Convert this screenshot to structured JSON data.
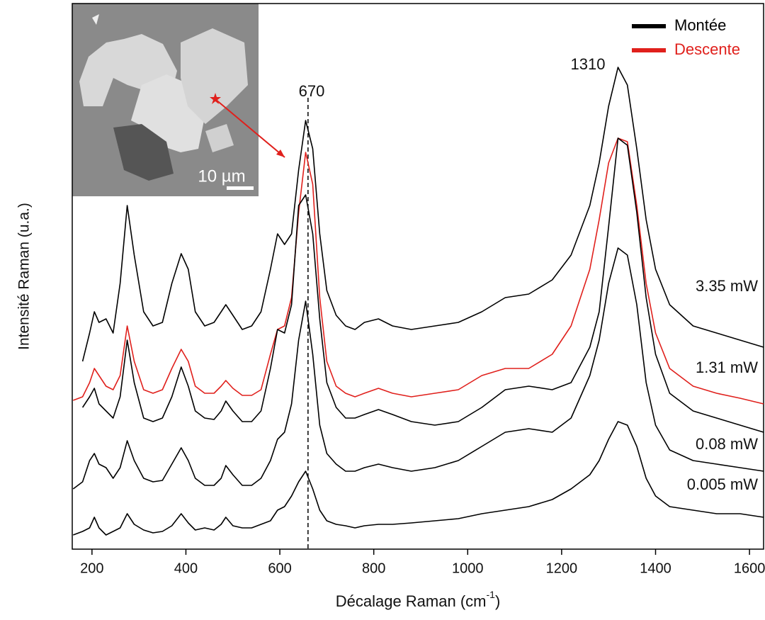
{
  "chart_data": {
    "type": "line",
    "x_label": {
      "text": "Décalage Raman (cm",
      "sup": "-1",
      "end": ")"
    },
    "y_label": "Intensité Raman (u.a.)",
    "xlim": [
      158,
      1630
    ],
    "xticks": [
      200,
      400,
      600,
      800,
      1000,
      1200,
      1400,
      1600
    ],
    "ylim": [
      0,
      770
    ],
    "reference_line": 660,
    "peak_labels": [
      "670",
      "1310"
    ],
    "inset": {
      "scale_label": "10 µm"
    },
    "x": [
      160,
      180,
      195,
      205,
      215,
      230,
      245,
      260,
      275,
      290,
      310,
      330,
      350,
      370,
      390,
      405,
      420,
      440,
      460,
      475,
      485,
      500,
      520,
      540,
      560,
      580,
      595,
      610,
      625,
      640,
      655,
      670,
      685,
      700,
      720,
      740,
      760,
      780,
      810,
      840,
      880,
      930,
      980,
      1030,
      1080,
      1130,
      1180,
      1220,
      1260,
      1280,
      1300,
      1320,
      1340,
      1360,
      1380,
      1400,
      1430,
      1480,
      1530,
      1580,
      1630
    ],
    "series": [
      {
        "name": "Montée",
        "color": "#000000",
        "label": "3.35 mW",
        "values": [
          null,
          265,
          305,
          335,
          320,
          325,
          305,
          375,
          485,
          415,
          335,
          315,
          320,
          375,
          417,
          395,
          335,
          315,
          320,
          335,
          345,
          330,
          310,
          315,
          335,
          395,
          445,
          430,
          445,
          535,
          605,
          565,
          445,
          365,
          330,
          315,
          310,
          320,
          325,
          315,
          310,
          315,
          320,
          335,
          355,
          360,
          380,
          415,
          485,
          545,
          625,
          680,
          655,
          565,
          465,
          395,
          345,
          315,
          305,
          295,
          285
        ]
      },
      {
        "name": "Descente",
        "color": "#e0201c",
        "label": "1.31 mW",
        "values": [
          210,
          215,
          235,
          255,
          245,
          230,
          225,
          245,
          315,
          265,
          225,
          220,
          225,
          255,
          282,
          265,
          230,
          220,
          220,
          230,
          238,
          227,
          217,
          217,
          225,
          275,
          310,
          315,
          355,
          475,
          560,
          515,
          355,
          265,
          230,
          220,
          215,
          220,
          227,
          220,
          215,
          220,
          225,
          245,
          255,
          255,
          275,
          315,
          395,
          465,
          545,
          580,
          575,
          485,
          375,
          305,
          255,
          230,
          220,
          213,
          205
        ]
      },
      {
        "name": "Montée",
        "color": "#000000",
        "values": [
          null,
          200,
          215,
          227,
          205,
          195,
          185,
          215,
          295,
          235,
          185,
          180,
          185,
          215,
          257,
          230,
          195,
          185,
          183,
          195,
          209,
          195,
          180,
          180,
          195,
          255,
          310,
          305,
          345,
          485,
          500,
          445,
          325,
          235,
          200,
          185,
          185,
          190,
          197,
          190,
          180,
          175,
          180,
          200,
          225,
          230,
          225,
          235,
          285,
          335,
          455,
          580,
          570,
          475,
          355,
          275,
          220,
          195,
          185,
          175,
          165
        ]
      },
      {
        "name": "Montée",
        "color": "#000000",
        "label": "0.08 mW",
        "values": [
          85,
          95,
          125,
          135,
          120,
          115,
          100,
          115,
          153,
          125,
          100,
          95,
          97,
          120,
          143,
          125,
          100,
          90,
          90,
          100,
          118,
          105,
          90,
          90,
          100,
          125,
          155,
          165,
          205,
          295,
          350,
          275,
          175,
          135,
          120,
          110,
          110,
          115,
          120,
          115,
          110,
          115,
          125,
          145,
          165,
          170,
          165,
          185,
          245,
          295,
          375,
          425,
          415,
          345,
          235,
          175,
          140,
          125,
          120,
          115,
          110
        ]
      },
      {
        "name": "Montée",
        "color": "#000000",
        "label": "0.005 mW",
        "values": [
          20,
          25,
          30,
          45,
          30,
          20,
          25,
          30,
          50,
          35,
          27,
          23,
          25,
          33,
          50,
          37,
          27,
          30,
          27,
          35,
          45,
          33,
          30,
          30,
          35,
          40,
          55,
          60,
          75,
          95,
          110,
          85,
          55,
          40,
          35,
          33,
          30,
          33,
          35,
          35,
          37,
          40,
          43,
          50,
          55,
          60,
          70,
          85,
          105,
          125,
          155,
          180,
          175,
          145,
          100,
          75,
          60,
          55,
          50,
          50,
          45
        ]
      }
    ]
  }
}
